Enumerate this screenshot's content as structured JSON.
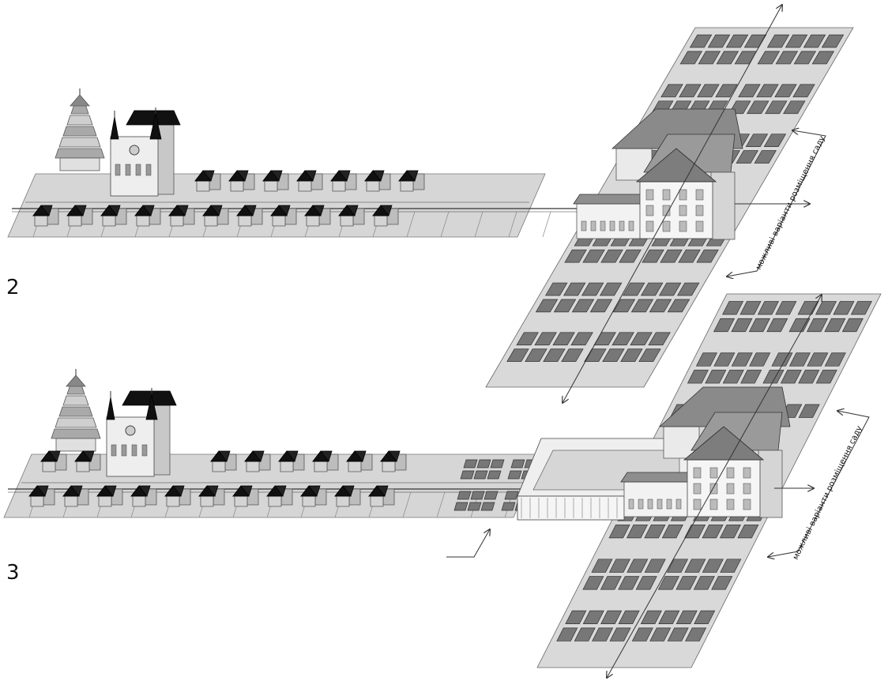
{
  "scenes": [
    {
      "label": "2",
      "note": "можливі варіанти розміщення саду"
    },
    {
      "label": "3",
      "note": "можливі варіанти розміщення саду"
    }
  ]
}
